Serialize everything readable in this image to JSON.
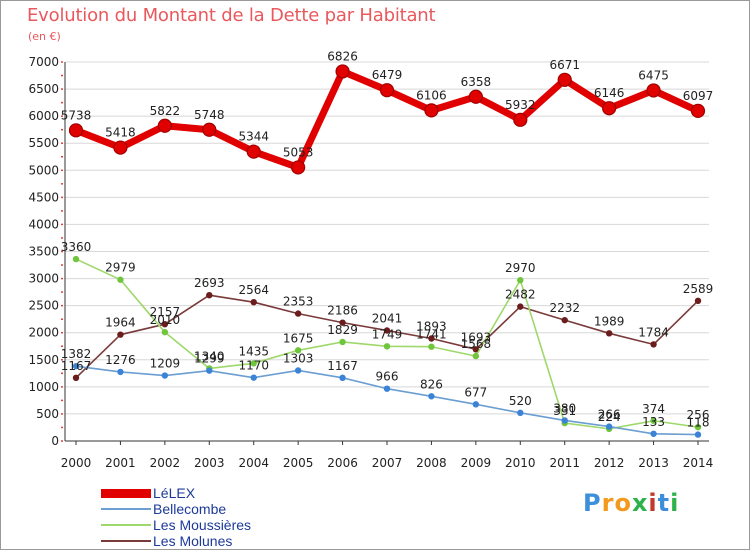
{
  "title": "Evolution du Montant de la Dette par Habitant",
  "unit": "(en €)",
  "logo": {
    "letters": [
      "P",
      "r",
      "o",
      "x",
      "i",
      "t",
      "i"
    ],
    "colors": [
      "#3d8fd9",
      "#f39a1e",
      "#f39a1e",
      "#2db34a",
      "#c0392b",
      "#3d8fd9",
      "#2db34a"
    ]
  },
  "chart_data": {
    "type": "line",
    "x": [
      "2000",
      "2001",
      "2002",
      "2003",
      "2004",
      "2005",
      "2006",
      "2007",
      "2008",
      "2009",
      "2010",
      "2011",
      "2012",
      "2013",
      "2014"
    ],
    "ylim": [
      0,
      7000
    ],
    "yticks": [
      "0",
      "500",
      "1000",
      "1500",
      "2000",
      "2500",
      "3000",
      "3500",
      "4000",
      "4500",
      "5000",
      "5500",
      "6000",
      "6500",
      "7000"
    ],
    "grid": true,
    "legend_position": "bottom-left",
    "series": [
      {
        "name": "LéLEX",
        "color": "#e00000",
        "marker_color": "#8b1515",
        "values": [
          5738,
          5418,
          5822,
          5748,
          5344,
          5053,
          6826,
          6479,
          6106,
          6358,
          5932,
          6671,
          6146,
          6475,
          6097
        ],
        "labels": [
          "5738",
          "5418",
          "5822",
          "5748",
          "5344",
          "5053",
          "6826",
          "6479",
          "6106",
          "6358",
          "5932",
          "6671",
          "6146",
          "6475",
          "6097"
        ]
      },
      {
        "name": "Bellecombe",
        "color": "#6b9ed1",
        "marker_color": "#3b83d6",
        "values": [
          1382,
          1276,
          1209,
          1299,
          1170,
          1303,
          1167,
          966,
          826,
          677,
          520,
          380,
          266,
          133,
          118
        ],
        "labels": [
          "1382",
          "1276",
          "1209",
          "1299",
          "1170",
          "1303",
          "1167",
          "966",
          "826",
          "677",
          "520",
          "380",
          "266",
          "133",
          "118"
        ]
      },
      {
        "name": "Les Moussières",
        "color": "#9ed86b",
        "marker_color": "#6fc53c",
        "values": [
          3360,
          2979,
          2010,
          1340,
          1435,
          1675,
          1829,
          1749,
          1741,
          1568,
          2970,
          331,
          224,
          374,
          256
        ],
        "labels": [
          "3360",
          "2979",
          "2010",
          "1340",
          "1435",
          "1675",
          "1829",
          "1749",
          "1741",
          "1568",
          "2970",
          "331",
          "224",
          "374",
          "256"
        ]
      },
      {
        "name": "Les Molunes",
        "color": "#7a3a3a",
        "marker_color": "#6b1c1c",
        "values": [
          1167,
          1964,
          2157,
          2693,
          2564,
          2353,
          2186,
          2041,
          1893,
          1693,
          2482,
          2232,
          1989,
          1784,
          2589
        ],
        "labels": [
          "1167",
          "1964",
          "2157",
          "2693",
          "2564",
          "2353",
          "2186",
          "2041",
          "1893",
          "1693",
          "2482",
          "2232",
          "1989",
          "1784",
          "2589"
        ]
      }
    ]
  }
}
